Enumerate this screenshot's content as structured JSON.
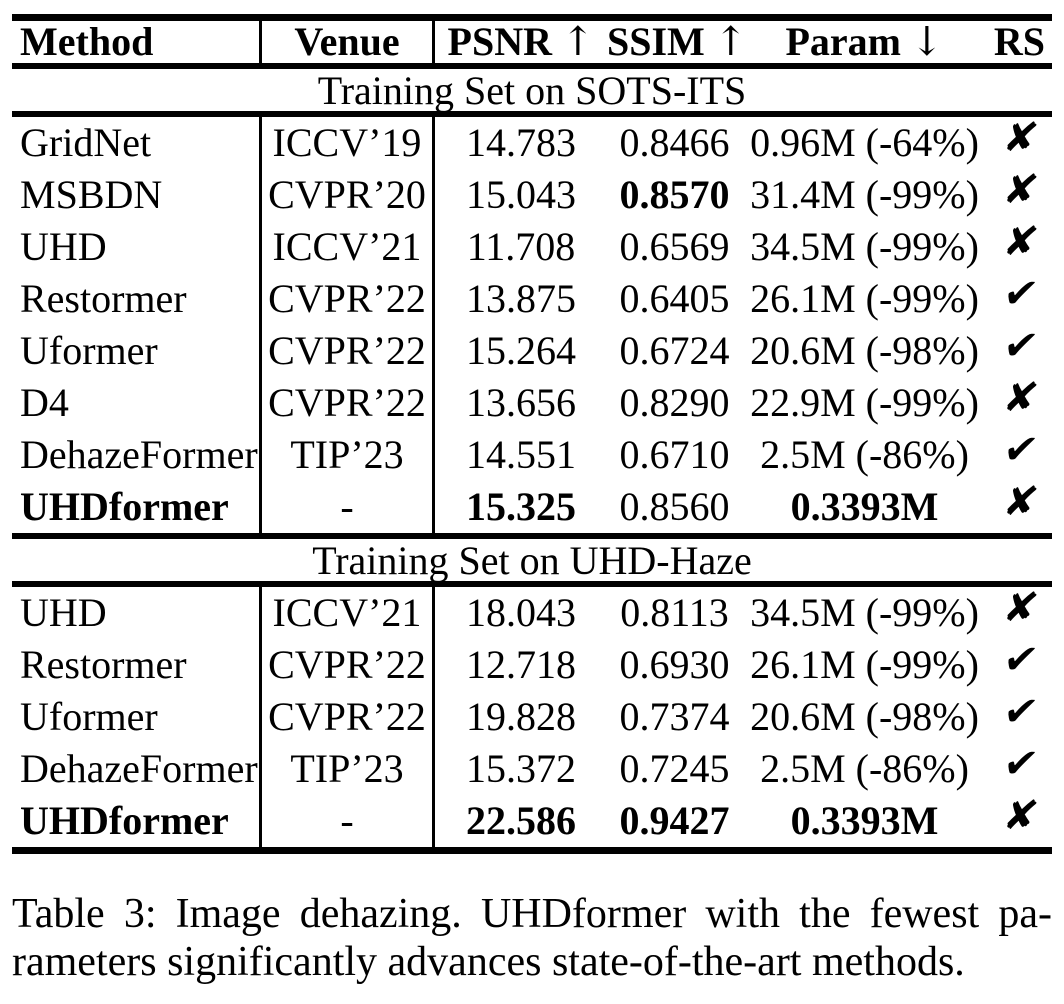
{
  "page": {
    "background": "#ffffff",
    "text_color": "#000000"
  },
  "table": {
    "columns": [
      {
        "key": "method",
        "label": "Method"
      },
      {
        "key": "venue",
        "label": "Venue"
      },
      {
        "key": "psnr",
        "label": "PSNR",
        "arrow": "↑"
      },
      {
        "key": "ssim",
        "label": "SSIM",
        "arrow": "↑"
      },
      {
        "key": "param",
        "label": "Param",
        "arrow": "↓"
      },
      {
        "key": "rs",
        "label": "RS"
      }
    ],
    "marks": {
      "check": "✔",
      "cross": "✘"
    },
    "sections": [
      {
        "title": "Training Set on SOTS-ITS",
        "rows": [
          {
            "method": "GridNet",
            "venue": "ICCV’19",
            "psnr": "14.783",
            "ssim": "0.8466",
            "param": "0.96M (-64%)",
            "rs": "cross",
            "bold": []
          },
          {
            "method": "MSBDN",
            "venue": "CVPR’20",
            "psnr": "15.043",
            "ssim": "0.8570",
            "param": "31.4M (-99%)",
            "rs": "cross",
            "bold": [
              "ssim"
            ]
          },
          {
            "method": "UHD",
            "venue": "ICCV’21",
            "psnr": "11.708",
            "ssim": "0.6569",
            "param": "34.5M (-99%)",
            "rs": "cross",
            "bold": []
          },
          {
            "method": "Restormer",
            "venue": "CVPR’22",
            "psnr": "13.875",
            "ssim": "0.6405",
            "param": "26.1M (-99%)",
            "rs": "check",
            "bold": []
          },
          {
            "method": "Uformer",
            "venue": "CVPR’22",
            "psnr": "15.264",
            "ssim": "0.6724",
            "param": "20.6M (-98%)",
            "rs": "check",
            "bold": []
          },
          {
            "method": "D4",
            "venue": "CVPR’22",
            "psnr": "13.656",
            "ssim": "0.8290",
            "param": "22.9M (-99%)",
            "rs": "cross",
            "bold": []
          },
          {
            "method": "DehazeFormer",
            "venue": "TIP’23",
            "psnr": "14.551",
            "ssim": "0.6710",
            "param": "2.5M (-86%)",
            "rs": "check",
            "bold": []
          },
          {
            "method": "UHDformer",
            "venue": "-",
            "psnr": "15.325",
            "ssim": "0.8560",
            "param": "0.3393M",
            "rs": "cross",
            "bold": [
              "method",
              "psnr",
              "param"
            ]
          }
        ]
      },
      {
        "title": "Training Set on UHD-Haze",
        "rows": [
          {
            "method": "UHD",
            "venue": "ICCV’21",
            "psnr": "18.043",
            "ssim": "0.8113",
            "param": "34.5M (-99%)",
            "rs": "cross",
            "bold": []
          },
          {
            "method": "Restormer",
            "venue": "CVPR’22",
            "psnr": "12.718",
            "ssim": "0.6930",
            "param": "26.1M (-99%)",
            "rs": "check",
            "bold": []
          },
          {
            "method": "Uformer",
            "venue": "CVPR’22",
            "psnr": "19.828",
            "ssim": "0.7374",
            "param": "20.6M (-98%)",
            "rs": "check",
            "bold": []
          },
          {
            "method": "DehazeFormer",
            "venue": "TIP’23",
            "psnr": "15.372",
            "ssim": "0.7245",
            "param": "2.5M (-86%)",
            "rs": "check",
            "bold": []
          },
          {
            "method": "UHDformer",
            "venue": "-",
            "psnr": "22.586",
            "ssim": "0.9427",
            "param": "0.3393M",
            "rs": "cross",
            "bold": [
              "method",
              "psnr",
              "ssim",
              "param"
            ]
          }
        ]
      }
    ]
  },
  "caption": {
    "line1": "Table 3: Image dehazing. UHDformer with the fewest pa-",
    "line2": "rameters significantly advances state-of-the-art methods."
  }
}
